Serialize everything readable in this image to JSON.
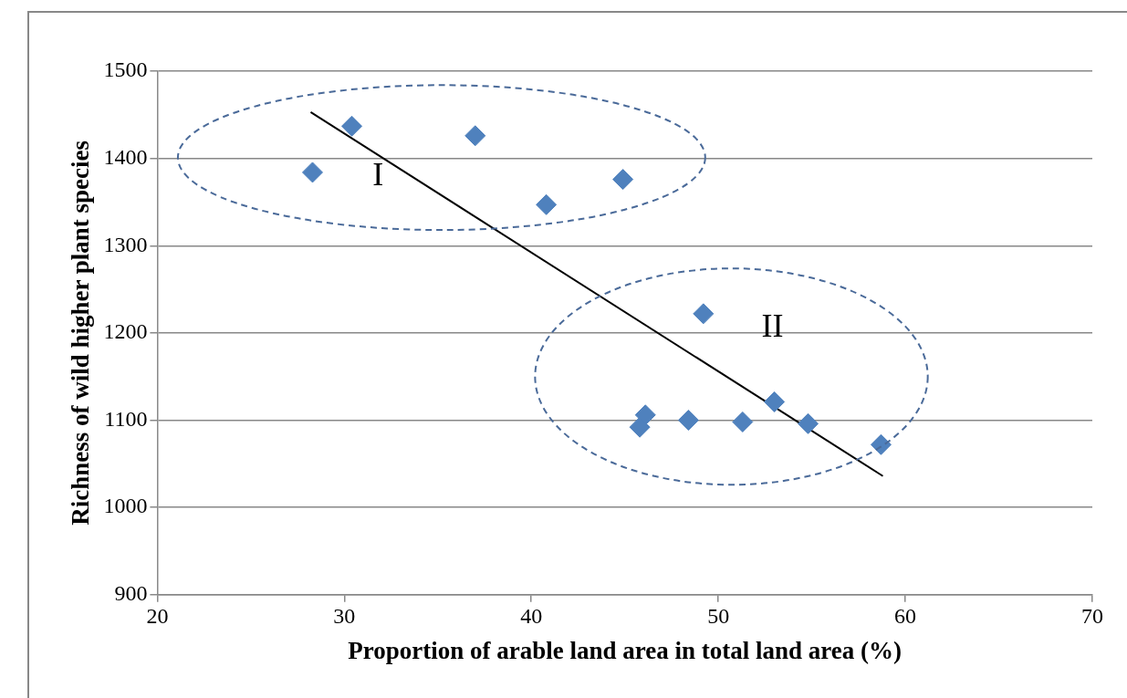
{
  "chart_data": {
    "type": "scatter",
    "xlabel": "Proportion of arable land area in total land area (%)",
    "ylabel": "Richness of wild higher plant species",
    "xlim": [
      20,
      70
    ],
    "xticks": [
      20,
      30,
      40,
      50,
      60,
      70
    ],
    "ylim": [
      900,
      1500
    ],
    "yticks": [
      900,
      1000,
      1100,
      1200,
      1300,
      1400,
      1500
    ],
    "grid": "y",
    "legend": false,
    "series": [
      {
        "marker": "diamond",
        "color": "#4f81bd",
        "x": [
          28.3,
          30.4,
          37.0,
          40.8,
          44.9,
          49.2,
          53.0,
          46.1,
          45.8,
          48.4,
          51.3,
          54.8,
          58.7
        ],
        "values": [
          1384,
          1437,
          1426,
          1347,
          1376,
          1222,
          1121,
          1106,
          1092,
          1100,
          1098,
          1096,
          1072
        ]
      },
      {
        "type": "line",
        "marker": "none",
        "color": "#000000",
        "x": [
          28.2,
          58.8
        ],
        "values": [
          1453,
          1036
        ]
      }
    ],
    "annotations": [
      "I",
      "II"
    ]
  }
}
